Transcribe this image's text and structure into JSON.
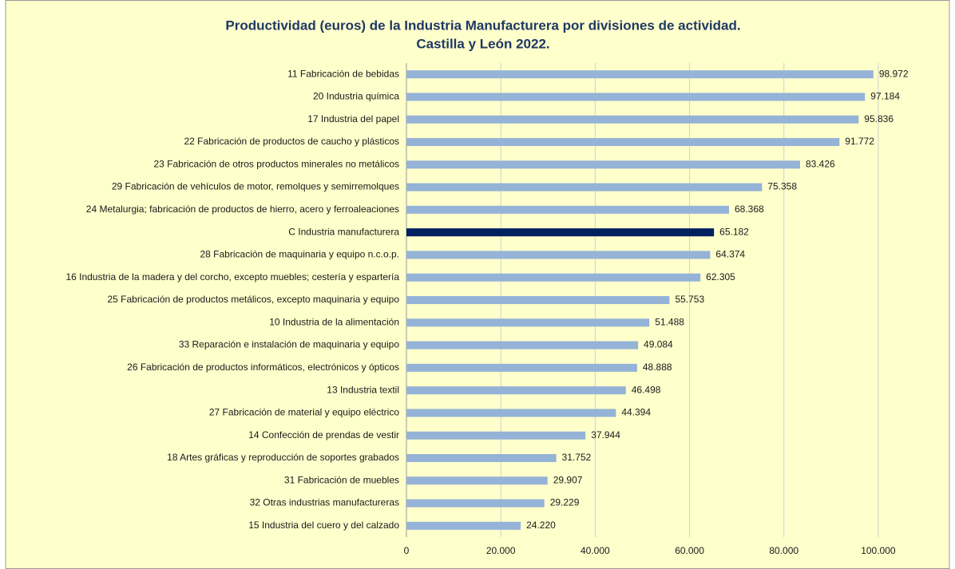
{
  "chart_data": {
    "type": "bar",
    "orientation": "horizontal",
    "title": [
      "Productividad (euros) de la Industria Manufacturera por divisiones de actividad.",
      "Castilla y León 2022."
    ],
    "categories": [
      "11 Fabricación de bebidas",
      "20 Industria química",
      "17 Industria del papel",
      "22 Fabricación de productos de caucho y plásticos",
      "23 Fabricación de otros productos minerales no metálicos",
      "29 Fabricación de vehículos de motor, remolques y semirremolques",
      "24 Metalurgia; fabricación de productos de hierro, acero y ferroaleaciones",
      "C Industria manufacturera",
      "28 Fabricación de maquinaria y equipo n.c.o.p.",
      "16 Industria de la madera y del corcho, excepto muebles; cestería y espartería",
      "25 Fabricación de productos metálicos, excepto maquinaria y equipo",
      "10 Industria de la alimentación",
      "33 Reparación e instalación de maquinaria y equipo",
      "26 Fabricación de productos informáticos, electrónicos y ópticos",
      "13 Industria textil",
      "27 Fabricación de material y equipo eléctrico",
      "14 Confección de prendas de vestir",
      "18 Artes gráficas y reproducción de soportes grabados",
      "31 Fabricación de muebles",
      "32 Otras industrias manufactureras",
      "15 Industria del cuero y del calzado"
    ],
    "values": [
      98972,
      97184,
      95836,
      91772,
      83426,
      75358,
      68368,
      65182,
      64374,
      62305,
      55753,
      51488,
      49084,
      48888,
      46498,
      44394,
      37944,
      31752,
      29907,
      29229,
      24220
    ],
    "value_labels": [
      "98.972",
      "97.184",
      "95.836",
      "91.772",
      "83.426",
      "75.358",
      "68.368",
      "65.182",
      "64.374",
      "62.305",
      "55.753",
      "51.488",
      "49.084",
      "48.888",
      "46.498",
      "44.394",
      "37.944",
      "31.752",
      "29.907",
      "29.229",
      "24.220"
    ],
    "colors": [
      "#95b3d7",
      "#95b3d7",
      "#95b3d7",
      "#95b3d7",
      "#95b3d7",
      "#95b3d7",
      "#95b3d7",
      "#002060",
      "#95b3d7",
      "#95b3d7",
      "#95b3d7",
      "#95b3d7",
      "#95b3d7",
      "#95b3d7",
      "#95b3d7",
      "#95b3d7",
      "#95b3d7",
      "#95b3d7",
      "#95b3d7",
      "#95b3d7",
      "#95b3d7"
    ],
    "xlim": [
      0,
      110000
    ],
    "xticks": [
      0,
      {
        "value": 20000,
        "label": "20.000"
      },
      {
        "value": 40000,
        "label": "40.000"
      },
      {
        "value": 60000,
        "label": "60.000"
      },
      {
        "value": 80000,
        "label": "80.000"
      },
      {
        "value": 100000,
        "label": "100.000"
      }
    ],
    "grid": true
  }
}
